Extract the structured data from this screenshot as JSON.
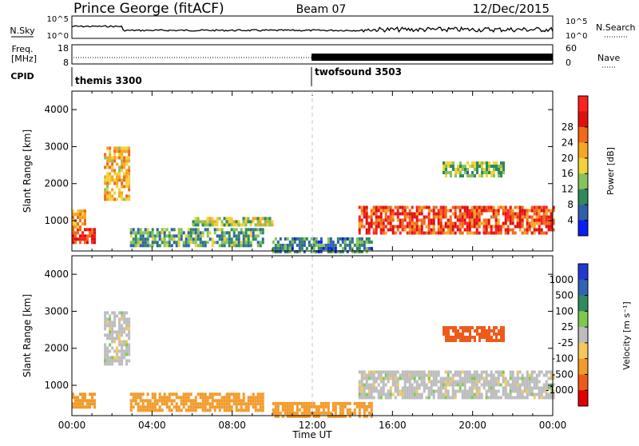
{
  "header": {
    "station": "Prince George (fitACF)",
    "beam": "Beam 07",
    "date": "12/Dec/2015"
  },
  "top_panels": {
    "nsky_label": "N.Sky",
    "nsky_ticks": [
      "10^5",
      "10^0"
    ],
    "nsearch_label": "N.Search",
    "nsearch_ticks": [
      "10^5",
      "10^0"
    ],
    "freq_label": [
      "Freq.",
      "[MHz]"
    ],
    "freq_ticks": [
      "18",
      "8"
    ],
    "nave_label": "Nave",
    "nave_ticks": [
      "60",
      "0"
    ],
    "cpid_label": "CPID",
    "programs": [
      {
        "name": "themis 3300",
        "start_hour": 0
      },
      {
        "name": "twofsound 3503",
        "start_hour": 12
      }
    ]
  },
  "time_axis": {
    "label": "Time UT",
    "ticks": [
      "00:00",
      "04:00",
      "08:00",
      "12:00",
      "16:00",
      "20:00",
      "00:00"
    ]
  },
  "range_axis": {
    "label": "Slant Range [km]",
    "ticks": [
      "1000",
      "2000",
      "3000",
      "4000"
    ]
  },
  "power_scale": {
    "label": "Power [dB]",
    "ticks": [
      "4",
      "8",
      "12",
      "16",
      "20",
      "24",
      "28"
    ],
    "colors": [
      "#0a1ef0",
      "#2f5fa8",
      "#2e8a5a",
      "#86c35a",
      "#f2d23a",
      "#f5a623",
      "#f06a1a",
      "#e01010",
      "#ff2020"
    ]
  },
  "velocity_scale": {
    "label": "Velocity [m s⁻¹]",
    "ticks": [
      "1000",
      "500",
      "100",
      "25",
      "-25",
      "-100",
      "-500",
      "-1000"
    ],
    "colors": [
      "#1f3ad0",
      "#2f63b4",
      "#2f8a60",
      "#7ec850",
      "#bdbdbd",
      "#f5c85a",
      "#f39a2a",
      "#ef5a1a",
      "#e00000"
    ]
  },
  "chart_data": [
    {
      "type": "heatmap",
      "title": "Power [dB]",
      "xlabel": "Time UT",
      "ylabel": "Slant Range [km]",
      "xlim": [
        0,
        24
      ],
      "ylim": [
        180,
        4500
      ],
      "regions": [
        {
          "t0": 0.0,
          "t1": 1.1,
          "r0": 400,
          "r1": 800,
          "power": 26
        },
        {
          "t0": 0.0,
          "t1": 0.6,
          "r0": 850,
          "r1": 1300,
          "power": 20
        },
        {
          "t0": 1.6,
          "t1": 2.9,
          "r0": 1600,
          "r1": 3000,
          "power": 18
        },
        {
          "t0": 2.9,
          "t1": 9.5,
          "r0": 350,
          "r1": 800,
          "power": 10
        },
        {
          "t0": 6.0,
          "t1": 10.0,
          "r0": 900,
          "r1": 1100,
          "power": 14
        },
        {
          "t0": 10.0,
          "t1": 15.0,
          "r0": 180,
          "r1": 550,
          "power": 8
        },
        {
          "t0": 14.3,
          "t1": 24.0,
          "r0": 700,
          "r1": 1400,
          "power": 24
        },
        {
          "t0": 18.5,
          "t1": 21.5,
          "r0": 2200,
          "r1": 2600,
          "power": 12
        }
      ]
    },
    {
      "type": "heatmap",
      "title": "Velocity [m s⁻¹]",
      "xlabel": "Time UT",
      "ylabel": "Slant Range [km]",
      "xlim": [
        0,
        24
      ],
      "ylim": [
        180,
        4500
      ],
      "regions": [
        {
          "t0": 0.0,
          "t1": 1.1,
          "r0": 400,
          "r1": 800,
          "velocity": -100
        },
        {
          "t0": 1.6,
          "t1": 2.9,
          "r0": 1600,
          "r1": 3000,
          "velocity": 0
        },
        {
          "t0": 2.9,
          "t1": 9.5,
          "r0": 350,
          "r1": 800,
          "velocity": -100
        },
        {
          "t0": 10.0,
          "t1": 15.0,
          "r0": 180,
          "r1": 550,
          "velocity": -100
        },
        {
          "t0": 14.3,
          "t1": 24.0,
          "r0": 700,
          "r1": 1400,
          "velocity": 0
        },
        {
          "t0": 18.5,
          "t1": 21.5,
          "r0": 2200,
          "r1": 2600,
          "velocity": -500
        }
      ]
    }
  ]
}
